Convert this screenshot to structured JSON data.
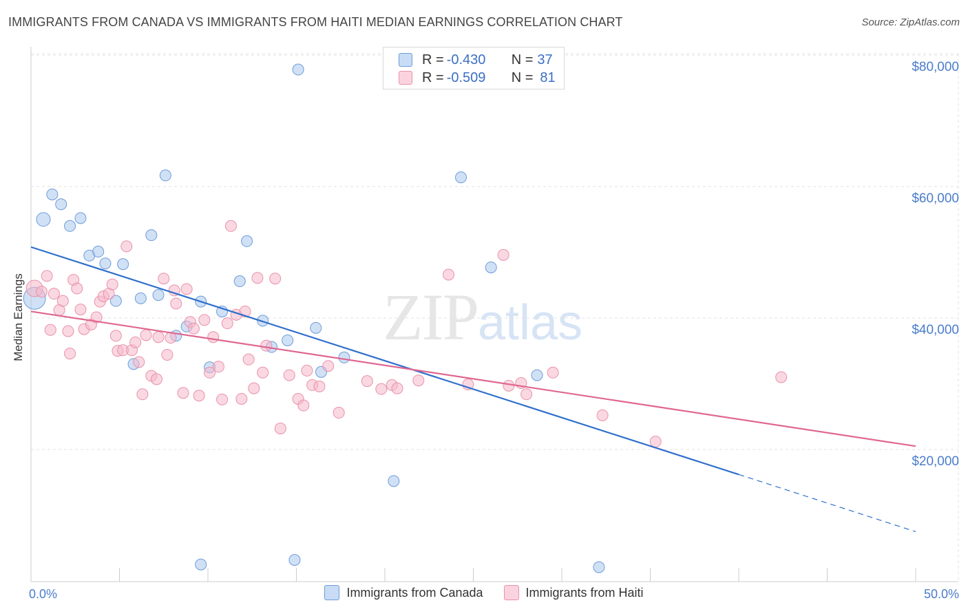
{
  "title": "IMMIGRANTS FROM CANADA VS IMMIGRANTS FROM HAITI MEDIAN EARNINGS CORRELATION CHART",
  "source": "Source: ZipAtlas.com",
  "watermark": {
    "zip": "ZIP",
    "atlas": "atlas"
  },
  "stats": {
    "canada": {
      "r_label": "R = ",
      "r_value": "-0.430",
      "n_label": "N = ",
      "n_value": "37",
      "color": "#a9c8ef"
    },
    "haiti": {
      "r_label": "R = ",
      "r_value": "-0.509",
      "n_label": "N = ",
      "n_value": "81",
      "color": "#f5b8cb"
    }
  },
  "legend": {
    "canada_label": "Immigrants from Canada",
    "haiti_label": "Immigrants from Haiti"
  },
  "chart_data": {
    "type": "scatter",
    "ylabel": "Median Earnings",
    "xlabel": "",
    "xlim": [
      0,
      50
    ],
    "ylim": [
      0,
      80000
    ],
    "x_tick_labels": {
      "min": "0.0%",
      "max": "50.0%"
    },
    "y_ticks": [
      {
        "value": 20000,
        "label": "$20,000"
      },
      {
        "value": 40000,
        "label": "$40,000"
      },
      {
        "value": 60000,
        "label": "$60,000"
      },
      {
        "value": 80000,
        "label": "$80,000"
      }
    ],
    "grid": true,
    "series": [
      {
        "name": "Immigrants from Canada",
        "color": "#a9c8ef",
        "stroke": "#6d9bd8",
        "line_color": "#2f6fcb",
        "trend": {
          "x0": 0,
          "y0": 50800,
          "x1": 40,
          "y1": 16200,
          "dash_x1": 50,
          "dash_y1": 7500
        },
        "points": [
          [
            0.2,
            43000,
            16
          ],
          [
            0.7,
            55000,
            10
          ],
          [
            1.2,
            58800,
            8
          ],
          [
            1.7,
            57300,
            8
          ],
          [
            2.2,
            54000,
            8
          ],
          [
            2.8,
            55200,
            8
          ],
          [
            3.3,
            49500,
            8
          ],
          [
            3.8,
            50100,
            8
          ],
          [
            4.2,
            48300,
            8
          ],
          [
            4.8,
            42600,
            8
          ],
          [
            5.2,
            48200,
            8
          ],
          [
            5.8,
            33000,
            8
          ],
          [
            6.2,
            43000,
            8
          ],
          [
            6.8,
            52600,
            8
          ],
          [
            7.2,
            43500,
            8
          ],
          [
            7.6,
            61700,
            8
          ],
          [
            8.2,
            37300,
            8
          ],
          [
            8.8,
            38700,
            8
          ],
          [
            9.6,
            42500,
            8
          ],
          [
            10.1,
            32500,
            8
          ],
          [
            10.8,
            41000,
            8
          ],
          [
            11.8,
            45600,
            8
          ],
          [
            12.2,
            51700,
            8
          ],
          [
            13.1,
            39600,
            8
          ],
          [
            13.6,
            35600,
            8
          ],
          [
            14.5,
            36600,
            8
          ],
          [
            15.1,
            77800,
            8
          ],
          [
            16.1,
            38500,
            8
          ],
          [
            16.4,
            31800,
            8
          ],
          [
            17.7,
            34000,
            8
          ],
          [
            20.5,
            15200,
            8
          ],
          [
            24.3,
            61400,
            8
          ],
          [
            26.0,
            47700,
            8
          ],
          [
            28.6,
            31300,
            8
          ],
          [
            9.6,
            2500,
            8
          ],
          [
            14.9,
            3200,
            8
          ],
          [
            32.1,
            2100,
            8
          ]
        ]
      },
      {
        "name": "Immigrants from Haiti",
        "color": "#f5b8cb",
        "stroke": "#e891ab",
        "line_color": "#e0668f",
        "trend": {
          "x0": 0,
          "y0": 41000,
          "x1": 50,
          "y1": 20500
        },
        "points": [
          [
            0.2,
            44500,
            12
          ],
          [
            0.6,
            44000,
            8
          ],
          [
            0.9,
            46400,
            8
          ],
          [
            1.1,
            38200,
            8
          ],
          [
            1.3,
            43700,
            8
          ],
          [
            1.6,
            41200,
            8
          ],
          [
            1.8,
            42600,
            8
          ],
          [
            2.1,
            38000,
            8
          ],
          [
            2.2,
            34600,
            8
          ],
          [
            2.4,
            45800,
            8
          ],
          [
            2.6,
            44500,
            8
          ],
          [
            2.8,
            41300,
            8
          ],
          [
            3.0,
            38300,
            8
          ],
          [
            3.4,
            39000,
            8
          ],
          [
            3.7,
            40100,
            8
          ],
          [
            3.9,
            42500,
            8
          ],
          [
            4.1,
            43300,
            8
          ],
          [
            4.4,
            43700,
            8
          ],
          [
            4.6,
            45100,
            8
          ],
          [
            4.8,
            37300,
            8
          ],
          [
            4.9,
            35000,
            8
          ],
          [
            5.2,
            35100,
            8
          ],
          [
            5.4,
            50900,
            8
          ],
          [
            5.7,
            35100,
            8
          ],
          [
            5.9,
            36300,
            8
          ],
          [
            6.1,
            33300,
            8
          ],
          [
            6.3,
            28400,
            8
          ],
          [
            6.5,
            37400,
            8
          ],
          [
            6.8,
            31200,
            8
          ],
          [
            7.1,
            30700,
            8
          ],
          [
            7.2,
            37100,
            8
          ],
          [
            7.5,
            46000,
            8
          ],
          [
            7.7,
            34400,
            8
          ],
          [
            7.9,
            37000,
            8
          ],
          [
            8.1,
            44200,
            8
          ],
          [
            8.2,
            42200,
            8
          ],
          [
            8.6,
            28600,
            8
          ],
          [
            8.8,
            44400,
            8
          ],
          [
            9.0,
            39400,
            8
          ],
          [
            9.2,
            38400,
            8
          ],
          [
            9.5,
            28200,
            8
          ],
          [
            9.8,
            39700,
            8
          ],
          [
            10.1,
            31700,
            8
          ],
          [
            10.3,
            37100,
            8
          ],
          [
            10.6,
            32600,
            8
          ],
          [
            10.8,
            27600,
            8
          ],
          [
            11.1,
            39200,
            8
          ],
          [
            11.3,
            54000,
            8
          ],
          [
            11.6,
            40500,
            8
          ],
          [
            11.9,
            27700,
            8
          ],
          [
            12.1,
            41000,
            8
          ],
          [
            12.3,
            33700,
            8
          ],
          [
            12.6,
            29300,
            8
          ],
          [
            12.8,
            46100,
            8
          ],
          [
            13.1,
            31700,
            8
          ],
          [
            13.3,
            35800,
            8
          ],
          [
            13.8,
            46000,
            8
          ],
          [
            14.1,
            23200,
            8
          ],
          [
            14.6,
            31300,
            8
          ],
          [
            15.1,
            27700,
            8
          ],
          [
            15.4,
            26700,
            8
          ],
          [
            15.9,
            29800,
            8
          ],
          [
            16.3,
            29600,
            8
          ],
          [
            16.8,
            32700,
            8
          ],
          [
            17.4,
            25600,
            8
          ],
          [
            19.0,
            30400,
            8
          ],
          [
            19.8,
            29200,
            8
          ],
          [
            20.4,
            29800,
            8
          ],
          [
            20.7,
            29300,
            8
          ],
          [
            21.9,
            30500,
            8
          ],
          [
            23.6,
            46600,
            8
          ],
          [
            26.7,
            49600,
            8
          ],
          [
            27.0,
            29700,
            8
          ],
          [
            27.7,
            30100,
            8
          ],
          [
            28.0,
            28400,
            8
          ],
          [
            29.5,
            31700,
            8
          ],
          [
            32.3,
            25200,
            8
          ],
          [
            35.3,
            21200,
            8
          ],
          [
            42.4,
            31000,
            8
          ],
          [
            24.7,
            29900,
            8
          ],
          [
            15.6,
            32000,
            8
          ]
        ]
      }
    ]
  }
}
